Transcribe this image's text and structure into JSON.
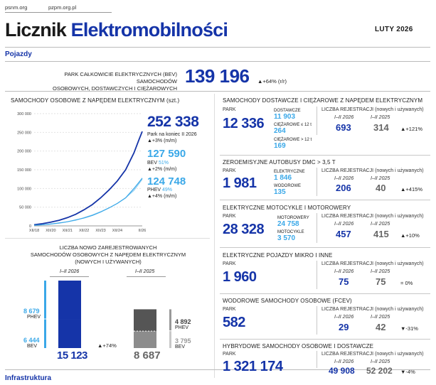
{
  "header": {
    "site1": "psnm.org",
    "site2": "pzpm.org.pl",
    "title_part1": "Licznik",
    "title_part2": "Elektromobilności",
    "date": "LUTY 2026",
    "section": "Pojazdy"
  },
  "bev_park": {
    "label_line1": "PARK CAŁKOWICIE ELEKTRYCZNYCH (BEV) SAMOCHODÓW",
    "label_line2": "OSOBOWYCH, DOSTAWCZYCH I CIĘŻAROWYCH",
    "value": "139 196",
    "change": "▲+64% (r/r)"
  },
  "cars_chart": {
    "title": "SAMOCHODY OSOBOWE Z NAPĘDEM ELEKTRYCZNYM",
    "unit": "(szt.)",
    "total_value": "252 338",
    "total_label": "Park na koniec II 2026",
    "total_change": "▲+3% (m/m)",
    "bev_value": "127 590",
    "bev_label": "BEV",
    "bev_share": "51%",
    "bev_change": "▲+2% (m/m)",
    "phev_value": "124 748",
    "phev_label": "PHEV",
    "phev_share": "49%",
    "phev_change": "▲+4% (m/m)"
  },
  "registrations": {
    "title_line1": "LICZBA NOWO ZAREJESTROWANYCH",
    "title_line2": "SAMOCHODÓW OSOBOWYCH Z NAPĘDEM ELEKTRYCZNYM",
    "title_line3": "(NOWYCH I UŻYWANYCH)",
    "period_2026": "I–II 2026",
    "period_2025": "I–II 2025",
    "phev_2026": "8 679",
    "bev_2026": "6 444",
    "total_2026": "15 123",
    "phev_2025": "4 892",
    "bev_2025": "3 795",
    "total_2025": "8 687",
    "phev_label": "PHEV",
    "bev_label": "BEV",
    "change": "▲+74%"
  },
  "right_sections": {
    "vans": {
      "title": "SAMOCHODY DOSTAWCZE I CIĘŻAROWE Z NAPĘDEM ELEKTRYCZNYM",
      "park_label": "PARK",
      "park_value": "12 336",
      "sub1_label": "DOSTAWCZE",
      "sub1_value": "11 903",
      "sub2_label": "CIĘŻAROWE ≤ 12 t",
      "sub2_value": "264",
      "sub3_label": "CIĘŻAROWE > 12 t",
      "sub3_value": "169",
      "reg_label": "LICZBA REJESTRACJI",
      "reg_sub": "(nowych i używanych)",
      "y1": "I–II 2026",
      "y2": "I–II 2025",
      "v1": "693",
      "v2": "314",
      "change": "▲+121%"
    },
    "buses": {
      "title": "ZEROEMISYJNE AUTOBUSY DMC > 3,5 t",
      "park_label": "PARK",
      "park_value": "1 981",
      "sub1_label": "ELEKTRYCZNE",
      "sub1_value": "1 846",
      "sub2_label": "WODOROWE",
      "sub2_value": "135",
      "reg_label": "LICZBA REJESTRACJI",
      "reg_sub": "(nowych i używanych)",
      "y1": "I–II 2026",
      "y2": "I–II 2025",
      "v1": "206",
      "v2": "40",
      "change": "▲+415%"
    },
    "moto": {
      "title": "ELEKTRYCZNE MOTOCYKLE I MOTOROWERY",
      "park_label": "PARK",
      "park_value": "28 328",
      "sub1_label": "MOTOROWERY",
      "sub1_value": "24 758",
      "sub2_label": "MOTOCYKLE",
      "sub2_value": "3 570",
      "reg_label": "LICZBA REJESTRACJI",
      "reg_sub": "(nowych i używanych)",
      "y1": "I–II 2026",
      "y2": "I–II 2025",
      "v1": "457",
      "v2": "415",
      "change": "▲+10%"
    },
    "micro": {
      "title": "ELEKTRYCZNE POJAZDY MIKRO I INNE",
      "park_label": "PARK",
      "park_value": "1 960",
      "reg_label": "LICZBA REJESTRACJI",
      "reg_sub": "(nowych i używanych)",
      "y1": "I–II 2026",
      "y2": "I–II 2025",
      "v1": "75",
      "v2": "75",
      "change": "= 0%"
    },
    "fcev": {
      "title": "WODOROWE SAMOCHODY OSOBOWE (FCEV)",
      "park_label": "PARK",
      "park_value": "582",
      "reg_label": "LICZBA REJESTRACJI",
      "reg_sub": "(nowych i używanych)",
      "y1": "I–II 2026",
      "y2": "I–II 2025",
      "v1": "29",
      "v2": "42",
      "change": "▼-31%"
    },
    "hybrid": {
      "title": "HYBRYDOWE SAMOCHODY OSOBOWE I DOSTAWCZE",
      "park_label": "PARK",
      "park_value": "1 321 174",
      "reg_label": "LICZBA REJESTRACJI",
      "reg_sub": "(nowych i używanych)",
      "y1": "I–II 2026",
      "y2": "I–II 2025",
      "v1": "49 908",
      "v2": "52 202",
      "change": "▼-4%"
    }
  },
  "footer": {
    "section": "Infrastruktura"
  },
  "chart_data": [
    {
      "type": "line",
      "title": "SAMOCHODY OSOBOWE Z NAPĘDEM ELEKTRYCZNYM (szt.)",
      "x": [
        "XII/18",
        "XII/20",
        "XII/21",
        "XII/22",
        "XII/23",
        "XII/24",
        "II/26"
      ],
      "ylim": [
        0,
        300000
      ],
      "yticks": [
        "0",
        "50 000",
        "100 000",
        "150 000",
        "200 000",
        "250 000",
        "300 000"
      ],
      "series": [
        {
          "name": "Total",
          "color": "#1534a8",
          "points": [
            [
              0,
              3000
            ],
            [
              0.5,
              6000
            ],
            [
              1,
              10000
            ],
            [
              1.5,
              15000
            ],
            [
              2,
              22000
            ],
            [
              2.5,
              31000
            ],
            [
              3,
              43000
            ],
            [
              3.5,
              57000
            ],
            [
              4,
              75000
            ],
            [
              4.5,
              96000
            ],
            [
              5,
              120000
            ],
            [
              5.5,
              150000
            ],
            [
              6,
              195000
            ],
            [
              6.3,
              230000
            ],
            [
              6.5,
              252338
            ]
          ]
        },
        {
          "name": "BEV",
          "color": "#3aa8e8",
          "points": [
            [
              0,
              1500
            ],
            [
              0.5,
              3000
            ],
            [
              1,
              5000
            ],
            [
              1.5,
              8000
            ],
            [
              2,
              11000
            ],
            [
              2.5,
              16000
            ],
            [
              3,
              21000
            ],
            [
              3.5,
              28000
            ],
            [
              4,
              37000
            ],
            [
              4.5,
              48000
            ],
            [
              5,
              60000
            ],
            [
              5.5,
              75000
            ],
            [
              6,
              100000
            ],
            [
              6.5,
              127590
            ]
          ]
        },
        {
          "name": "PHEV",
          "color": "#3aa8e8",
          "points": [
            [
              0,
              1500
            ],
            [
              0.5,
              3000
            ],
            [
              1,
              5000
            ],
            [
              1.5,
              7000
            ],
            [
              2,
              11000
            ],
            [
              2.5,
              15000
            ],
            [
              3,
              22000
            ],
            [
              3.5,
              29000
            ],
            [
              4,
              38000
            ],
            [
              4.5,
              48000
            ],
            [
              5,
              60000
            ],
            [
              5.5,
              75000
            ],
            [
              6,
              95000
            ],
            [
              6.5,
              124748
            ]
          ]
        }
      ]
    },
    {
      "type": "bar",
      "title": "LICZBA NOWO ZAREJESTROWANYCH SAMOCHODÓW OSOBOWYCH Z NAPĘDEM ELEKTRYCZNYM (NOWYCH I UŻYWANYCH)",
      "categories": [
        "I–II 2026",
        "I–II 2025"
      ],
      "series": [
        {
          "name": "BEV",
          "values": [
            6444,
            3795
          ]
        },
        {
          "name": "PHEV",
          "values": [
            8679,
            4892
          ]
        }
      ],
      "totals": [
        15123,
        8687
      ]
    }
  ]
}
